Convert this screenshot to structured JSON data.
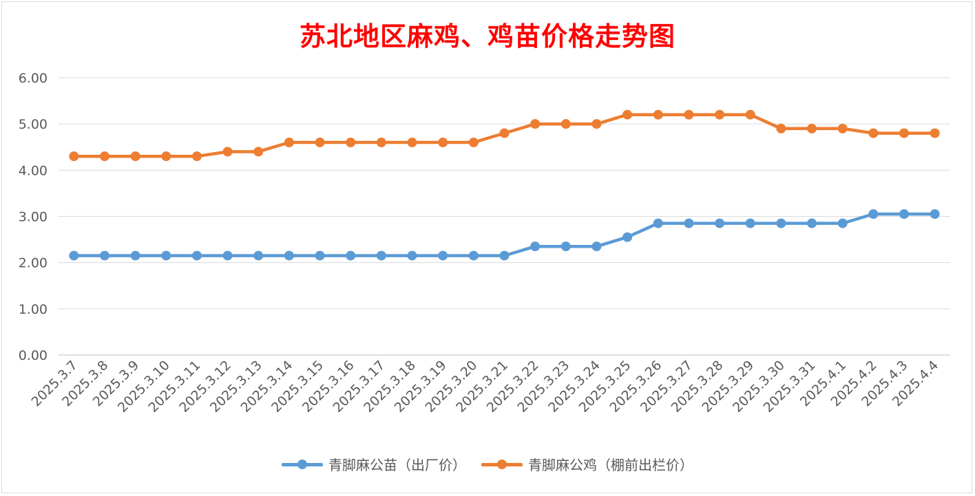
{
  "chart_data": {
    "type": "line",
    "title": "苏北地区麻鸡、鸡苗价格走势图",
    "title_color": "#ff0000",
    "ylim": [
      0,
      6
    ],
    "yticks": [
      "0.00",
      "1.00",
      "2.00",
      "3.00",
      "4.00",
      "5.00",
      "6.00"
    ],
    "grid": true,
    "legend_position": "bottom",
    "categories": [
      "2025.3.7",
      "2025.3.8",
      "2025.3.9",
      "2025.3.10",
      "2025.3.11",
      "2025.3.12",
      "2025.3.13",
      "2025.3.14",
      "2025.3.15",
      "2025.3.16",
      "2025.3.17",
      "2025.3.18",
      "2025.3.19",
      "2025.3.20",
      "2025.3.21",
      "2025.3.22",
      "2025.3.23",
      "2025.3.24",
      "2025.3.25",
      "2025.3.26",
      "2025.3.27",
      "2025.3.28",
      "2025.3.29",
      "2025.3.30",
      "2025.3.31",
      "2025.4.1",
      "2025.4.2",
      "2025.4.3",
      "2025.4.4"
    ],
    "series": [
      {
        "name": "青脚麻公苗（出厂价）",
        "color": "#5b9bd5",
        "values": [
          2.15,
          2.15,
          2.15,
          2.15,
          2.15,
          2.15,
          2.15,
          2.15,
          2.15,
          2.15,
          2.15,
          2.15,
          2.15,
          2.15,
          2.15,
          2.35,
          2.35,
          2.35,
          2.55,
          2.85,
          2.85,
          2.85,
          2.85,
          2.85,
          2.85,
          2.85,
          3.05,
          3.05,
          3.05
        ]
      },
      {
        "name": "青脚麻公鸡（棚前出栏价）",
        "color": "#ed7d31",
        "values": [
          4.3,
          4.3,
          4.3,
          4.3,
          4.3,
          4.4,
          4.4,
          4.6,
          4.6,
          4.6,
          4.6,
          4.6,
          4.6,
          4.6,
          4.8,
          5.0,
          5.0,
          5.0,
          5.2,
          5.2,
          5.2,
          5.2,
          5.2,
          4.9,
          4.9,
          4.9,
          4.8,
          4.8,
          4.8
        ]
      }
    ]
  }
}
